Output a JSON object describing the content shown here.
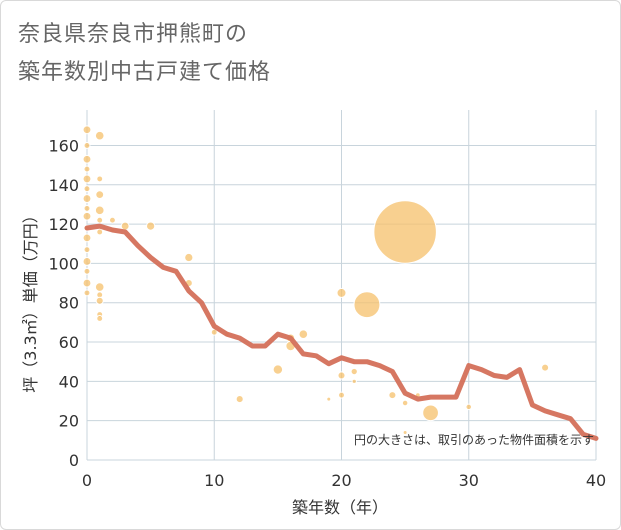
{
  "chart_data": {
    "type": "scatter",
    "title_lines": [
      "奈良県奈良市押熊町の",
      "築年数別中古戸建て価格"
    ],
    "xlabel": "築年数（年）",
    "ylabel": "坪（3.3㎡）単価（万円）",
    "xlim": [
      0,
      40
    ],
    "ylim": [
      0,
      175
    ],
    "x_ticks": [
      0,
      10,
      20,
      30,
      40
    ],
    "y_ticks": [
      0,
      20,
      40,
      60,
      80,
      100,
      120,
      140,
      160
    ],
    "grid": true,
    "note": "円の大きさは、取引のあった物件面積を示す",
    "colors": {
      "bubble": "#f5c06b",
      "line": "#d4705a",
      "grid": "#c8d4dc"
    },
    "bubbles": [
      {
        "x": 0,
        "y": 168,
        "s": 2
      },
      {
        "x": 0,
        "y": 160,
        "s": 1.5
      },
      {
        "x": 0,
        "y": 153,
        "s": 2
      },
      {
        "x": 0,
        "y": 148,
        "s": 1.5
      },
      {
        "x": 0,
        "y": 143,
        "s": 2
      },
      {
        "x": 0,
        "y": 138,
        "s": 1.5
      },
      {
        "x": 0,
        "y": 133,
        "s": 2
      },
      {
        "x": 0,
        "y": 128,
        "s": 1.5
      },
      {
        "x": 0,
        "y": 124,
        "s": 2
      },
      {
        "x": 0,
        "y": 118,
        "s": 1.5
      },
      {
        "x": 0,
        "y": 113,
        "s": 2
      },
      {
        "x": 0,
        "y": 107,
        "s": 1.5
      },
      {
        "x": 0,
        "y": 101,
        "s": 2
      },
      {
        "x": 0,
        "y": 96,
        "s": 1.5
      },
      {
        "x": 0,
        "y": 90,
        "s": 2
      },
      {
        "x": 0,
        "y": 85,
        "s": 1.5
      },
      {
        "x": 1,
        "y": 165,
        "s": 2.2
      },
      {
        "x": 1,
        "y": 143,
        "s": 1.5
      },
      {
        "x": 1,
        "y": 135,
        "s": 2
      },
      {
        "x": 1,
        "y": 127,
        "s": 2.2
      },
      {
        "x": 1,
        "y": 122,
        "s": 1.5
      },
      {
        "x": 1,
        "y": 116,
        "s": 1.5
      },
      {
        "x": 1,
        "y": 88,
        "s": 2.2
      },
      {
        "x": 1,
        "y": 84,
        "s": 1.5
      },
      {
        "x": 1,
        "y": 81,
        "s": 1.8
      },
      {
        "x": 1,
        "y": 74,
        "s": 1.5
      },
      {
        "x": 1,
        "y": 72,
        "s": 1.5
      },
      {
        "x": 2,
        "y": 122,
        "s": 1.5
      },
      {
        "x": 2,
        "y": 117,
        "s": 1.2
      },
      {
        "x": 3,
        "y": 119,
        "s": 2
      },
      {
        "x": 5,
        "y": 119,
        "s": 2.1
      },
      {
        "x": 8,
        "y": 103,
        "s": 2.1
      },
      {
        "x": 8,
        "y": 90,
        "s": 1.8
      },
      {
        "x": 10,
        "y": 65,
        "s": 1.5
      },
      {
        "x": 11,
        "y": 64,
        "s": 1.2
      },
      {
        "x": 12,
        "y": 31,
        "s": 1.8
      },
      {
        "x": 15,
        "y": 46,
        "s": 2.4
      },
      {
        "x": 16,
        "y": 62,
        "s": 2.1
      },
      {
        "x": 16,
        "y": 58,
        "s": 2.4
      },
      {
        "x": 17,
        "y": 64,
        "s": 2.2
      },
      {
        "x": 19,
        "y": 31,
        "s": 0.9
      },
      {
        "x": 20,
        "y": 85,
        "s": 2.3
      },
      {
        "x": 20,
        "y": 43,
        "s": 1.8
      },
      {
        "x": 20,
        "y": 33,
        "s": 1.5
      },
      {
        "x": 21,
        "y": 45,
        "s": 1.6
      },
      {
        "x": 21,
        "y": 40,
        "s": 1.1
      },
      {
        "x": 22,
        "y": 79,
        "s": 6.6
      },
      {
        "x": 24,
        "y": 33,
        "s": 1.8
      },
      {
        "x": 25,
        "y": 116,
        "s": 15.9
      },
      {
        "x": 25,
        "y": 29,
        "s": 1.4
      },
      {
        "x": 25,
        "y": 14,
        "s": 0.8
      },
      {
        "x": 26,
        "y": 33,
        "s": 1.2
      },
      {
        "x": 27,
        "y": 24,
        "s": 4.0
      },
      {
        "x": 30,
        "y": 27,
        "s": 1.4
      },
      {
        "x": 36,
        "y": 47,
        "s": 1.8
      }
    ],
    "line": {
      "x": [
        0,
        1,
        2,
        3,
        4,
        5,
        6,
        7,
        8,
        9,
        10,
        11,
        12,
        13,
        14,
        15,
        16,
        17,
        18,
        19,
        20,
        21,
        22,
        23,
        24,
        25,
        26,
        27,
        28,
        29,
        30,
        31,
        32,
        33,
        34,
        35,
        36,
        37,
        38,
        39,
        40
      ],
      "y": [
        118,
        119,
        117,
        116,
        109,
        103,
        98,
        96,
        86,
        80,
        68,
        64,
        62,
        58,
        58,
        64,
        62,
        54,
        53,
        49,
        52,
        50,
        50,
        48,
        45,
        34,
        31,
        32,
        32,
        32,
        48,
        46,
        43,
        42,
        46,
        28,
        25,
        23,
        21,
        13,
        11
      ]
    }
  }
}
